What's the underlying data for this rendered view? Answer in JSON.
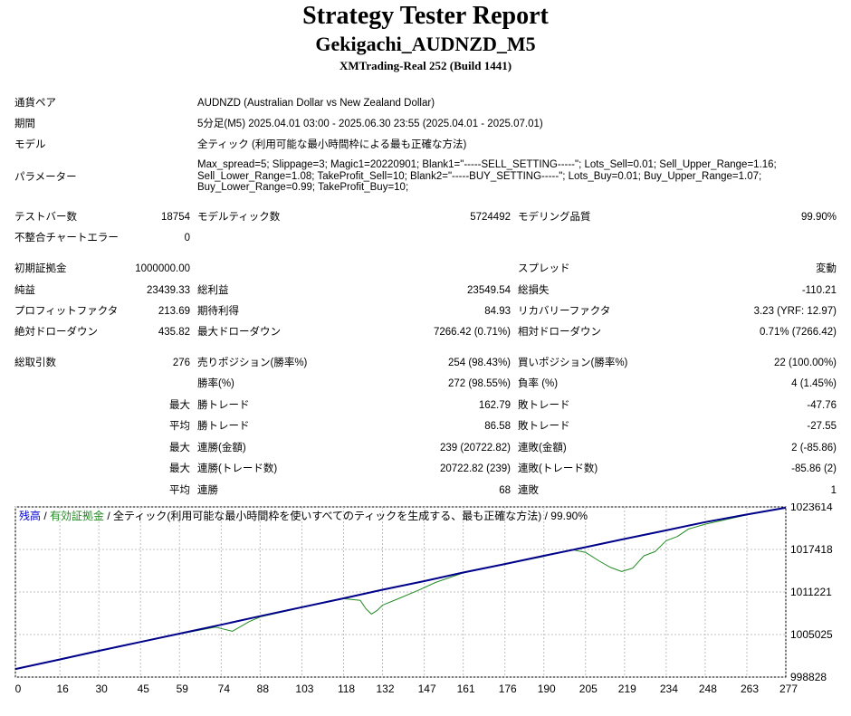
{
  "header": {
    "title": "Strategy Tester Report",
    "subtitle": "Gekigachi_AUDNZD_M5",
    "server": "XMTrading-Real 252 (Build 1441)"
  },
  "settings": {
    "symbol_label": "通貨ペア",
    "symbol_value": "AUDNZD (Australian Dollar vs New Zealand Dollar)",
    "period_label": "期間",
    "period_value": "5分足(M5) 2025.04.01 03:00 - 2025.06.30 23:55 (2025.04.01 - 2025.07.01)",
    "model_label": "モデル",
    "model_value": "全ティック (利用可能な最小時間枠による最も正確な方法)",
    "params_label": "パラメーター",
    "params_lines": [
      "Max_spread=5; Slippage=3; Magic1=20220901; Blank1=\"-----SELL_SETTING-----\"; Lots_Sell=0.01; Sell_Upper_Range=1.16;",
      "Sell_Lower_Range=1.08; TakeProfit_Sell=10; Blank2=\"-----BUY_SETTING-----\"; Lots_Buy=0.01; Buy_Upper_Range=1.07;",
      "Buy_Lower_Range=0.99; TakeProfit_Buy=10;"
    ]
  },
  "test": {
    "bars_label": "テストバー数",
    "bars_value": "18754",
    "ticks_label": "モデルティック数",
    "ticks_value": "5724492",
    "quality_label": "モデリング品質",
    "quality_value": "99.90%",
    "errors_label": "不整合チャートエラー",
    "errors_value": "0"
  },
  "results": {
    "deposit_label": "初期証拠金",
    "deposit_value": "1000000.00",
    "spread_label": "スプレッド",
    "spread_value": "変動",
    "net_label": "純益",
    "net_value": "23439.33",
    "gross_profit_label": "総利益",
    "gross_profit_value": "23549.54",
    "gross_loss_label": "総損失",
    "gross_loss_value": "-110.21",
    "pf_label": "プロフィットファクタ",
    "pf_value": "213.69",
    "expected_label": "期待利得",
    "expected_value": "84.93",
    "recovery_label": "リカバリーファクタ",
    "recovery_value": "3.23 (YRF: 12.97)",
    "abs_dd_label": "絶対ドローダウン",
    "abs_dd_value": "435.82",
    "max_dd_label": "最大ドローダウン",
    "max_dd_value": "7266.42 (0.71%)",
    "rel_dd_label": "相対ドローダウン",
    "rel_dd_value": "0.71% (7266.42)"
  },
  "trades": {
    "total_label": "総取引数",
    "total_value": "276",
    "short_label": "売りポジション(勝率%)",
    "short_value": "254 (98.43%)",
    "long_label": "買いポジション(勝率%)",
    "long_value": "22 (100.00%)",
    "win_label": "勝率(%)",
    "win_value": "272 (98.55%)",
    "loss_label": "負率 (%)",
    "loss_value": "4 (1.45%)",
    "max_word": "最大",
    "avg_word": "平均",
    "win_trade_label": "勝トレード",
    "loss_trade_label": "敗トレード",
    "largest_win_value": "162.79",
    "largest_loss_value": "-47.76",
    "average_win_value": "86.58",
    "average_loss_value": "-27.55",
    "consec_win_money_label": "連勝(金額)",
    "consec_win_money_value": "239 (20722.82)",
    "consec_loss_money_label": "連敗(金額)",
    "consec_loss_money_value": "2 (-85.86)",
    "consec_win_trades_label": "連勝(トレード数)",
    "consec_win_trades_value": "20722.82 (239)",
    "consec_loss_trades_label": "連敗(トレード数)",
    "consec_loss_trades_value": "-85.86 (2)",
    "consec_win_label": "連勝",
    "consec_win_value": "68",
    "consec_loss_label": "連敗",
    "consec_loss_value": "1"
  },
  "chart_data": {
    "type": "line",
    "legend": {
      "balance": "残高",
      "sep1": " / ",
      "equity": "有効証拠金",
      "rest": " / 全ティック(利用可能な最小時間枠を使いすべてのティックを生成する、最も正確な方法) / 99.90%"
    },
    "colors": {
      "balance": "#00008b",
      "equity": "#228b22",
      "grid": "#bfbfbf",
      "legend_balance": "#0000cd",
      "legend_equity": "#228b22"
    },
    "x_ticks": [
      0,
      16,
      30,
      45,
      59,
      74,
      88,
      103,
      118,
      132,
      147,
      161,
      176,
      190,
      205,
      219,
      234,
      248,
      263,
      277
    ],
    "y_ticks": [
      998828,
      1005025,
      1011221,
      1017418,
      1023614
    ],
    "xlim": [
      0,
      277
    ],
    "ylim": [
      998828,
      1023614
    ],
    "series": [
      {
        "key": "balance",
        "x": [
          0,
          16,
          30,
          45,
          59,
          74,
          88,
          103,
          118,
          132,
          147,
          161,
          176,
          190,
          205,
          219,
          234,
          248,
          263,
          277
        ],
        "y": [
          1000000,
          1001400,
          1002650,
          1003950,
          1005150,
          1006450,
          1007700,
          1009000,
          1010300,
          1011550,
          1012800,
          1014050,
          1015300,
          1016500,
          1017750,
          1018950,
          1020200,
          1021400,
          1022500,
          1023500
        ]
      },
      {
        "key": "equity",
        "x": [
          0,
          16,
          30,
          45,
          59,
          72,
          78,
          84,
          88,
          103,
          118,
          124,
          126,
          128,
          130,
          132,
          138,
          145,
          151,
          161,
          176,
          190,
          200,
          205,
          210,
          214,
          218,
          222,
          226,
          230,
          234,
          238,
          242,
          248,
          263,
          277
        ],
        "y": [
          1000000,
          1001350,
          1002600,
          1003900,
          1005100,
          1006100,
          1005500,
          1006900,
          1007600,
          1008950,
          1010250,
          1010000,
          1008800,
          1008000,
          1008500,
          1009300,
          1010300,
          1011500,
          1012600,
          1014000,
          1015250,
          1016400,
          1017400,
          1017000,
          1015700,
          1014800,
          1014200,
          1014700,
          1016500,
          1017100,
          1018700,
          1019300,
          1020400,
          1021100,
          1022450,
          1023450
        ]
      }
    ]
  }
}
